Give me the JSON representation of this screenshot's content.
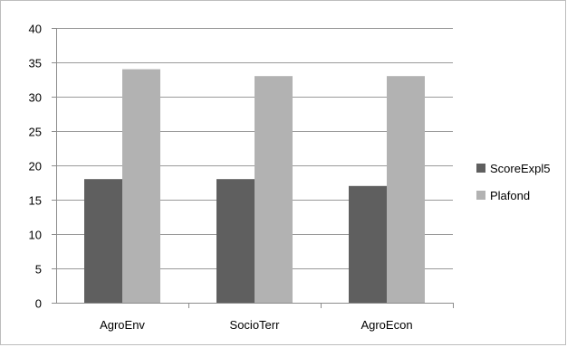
{
  "chart_data": {
    "type": "bar",
    "categories": [
      "AgroEnv",
      "SocioTerr",
      "AgroEcon"
    ],
    "series": [
      {
        "name": "ScoreExpl5",
        "color": "#5f5f5f",
        "values": [
          18,
          18,
          17
        ]
      },
      {
        "name": "Plafond",
        "color": "#b2b2b2",
        "values": [
          34,
          33,
          33
        ]
      }
    ],
    "ylim": [
      0,
      40
    ],
    "yticks": [
      0,
      5,
      10,
      15,
      20,
      25,
      30,
      35,
      40
    ],
    "grid": true,
    "legend": "right",
    "title": "",
    "xlabel": "",
    "ylabel": ""
  }
}
